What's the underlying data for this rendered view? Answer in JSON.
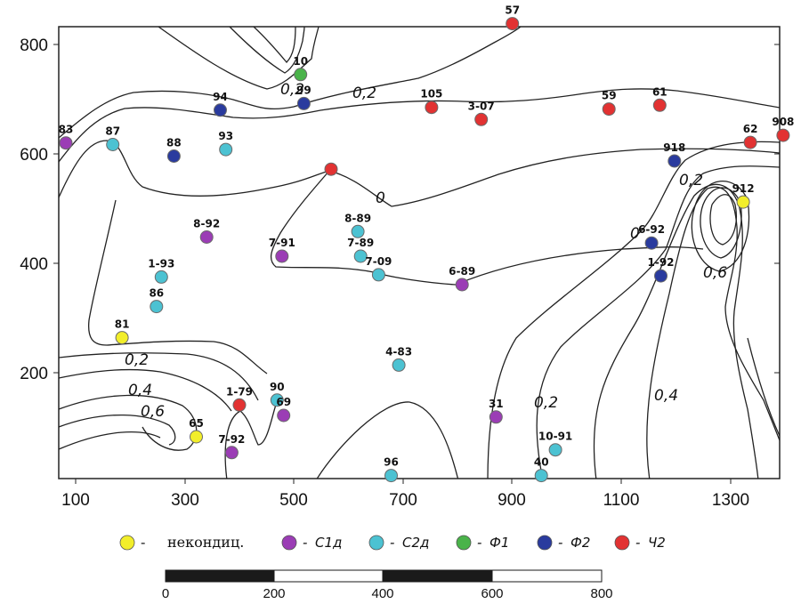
{
  "axes": {
    "x_ticks": [
      "100",
      "300",
      "500",
      "700",
      "900",
      "1100",
      "1300"
    ],
    "y_ticks": [
      "800",
      "600",
      "400",
      "200"
    ]
  },
  "colors": {
    "yellow": "#f2ee2a",
    "purple": "#9b3db5",
    "cyan": "#4cc2d2",
    "green": "#4ab34a",
    "blue": "#2a3b9e",
    "red": "#e23232"
  },
  "legend": [
    {
      "color_key": "yellow",
      "dash": "-",
      "label": "некондиц."
    },
    {
      "color_key": "purple",
      "dash": "-",
      "label": "С1д"
    },
    {
      "color_key": "cyan",
      "dash": "-",
      "label": "С2д"
    },
    {
      "color_key": "green",
      "dash": "-",
      "label": "Ф1"
    },
    {
      "color_key": "blue",
      "dash": "-",
      "label": "Ф2"
    },
    {
      "color_key": "red",
      "dash": "-",
      "label": "Ч2"
    }
  ],
  "scale_bar": {
    "labels": [
      "0",
      "200",
      "400",
      "600",
      "800"
    ]
  },
  "contour_labels": [
    "0,2",
    "0,2",
    "0",
    "0,2",
    "0,6",
    "0,4",
    "0,2",
    "0,4",
    "0,6",
    "0",
    "0,2"
  ],
  "wells": [
    {
      "label": "57",
      "x": 900,
      "y": 838,
      "color": "red"
    },
    {
      "label": "10",
      "x": 512,
      "y": 745,
      "color": "green"
    },
    {
      "label": "94",
      "x": 365,
      "y": 680,
      "color": "blue"
    },
    {
      "label": "99",
      "x": 518,
      "y": 692,
      "color": "blue"
    },
    {
      "label": "105",
      "x": 752,
      "y": 685,
      "color": "red"
    },
    {
      "label": "3-07",
      "x": 843,
      "y": 663,
      "color": "red"
    },
    {
      "label": "59",
      "x": 1077,
      "y": 682,
      "color": "red"
    },
    {
      "label": "61",
      "x": 1170,
      "y": 689,
      "color": "red"
    },
    {
      "label": "83",
      "x": 82,
      "y": 620,
      "color": "purple"
    },
    {
      "label": "87",
      "x": 168,
      "y": 617,
      "color": "cyan"
    },
    {
      "label": "88",
      "x": 280,
      "y": 596,
      "color": "blue"
    },
    {
      "label": "93",
      "x": 375,
      "y": 608,
      "color": "cyan"
    },
    {
      "label": "62",
      "x": 1336,
      "y": 621,
      "color": "red"
    },
    {
      "label": "908",
      "x": 1396,
      "y": 634,
      "color": "red"
    },
    {
      "label": "918",
      "x": 1197,
      "y": 587,
      "color": "blue"
    },
    {
      "label": "",
      "x": 568,
      "y": 572,
      "color": "red"
    },
    {
      "label": "912",
      "x": 1323,
      "y": 512,
      "color": "yellow"
    },
    {
      "label": "8-92",
      "x": 340,
      "y": 448,
      "color": "purple"
    },
    {
      "label": "8-89",
      "x": 617,
      "y": 458,
      "color": "cyan"
    },
    {
      "label": "6-92",
      "x": 1155,
      "y": 437,
      "color": "blue"
    },
    {
      "label": "7-91",
      "x": 478,
      "y": 413,
      "color": "purple"
    },
    {
      "label": "7-89",
      "x": 622,
      "y": 413,
      "color": "cyan"
    },
    {
      "label": "1-93",
      "x": 257,
      "y": 375,
      "color": "cyan"
    },
    {
      "label": "7-09",
      "x": 655,
      "y": 379,
      "color": "cyan"
    },
    {
      "label": "6-89",
      "x": 808,
      "y": 361,
      "color": "purple"
    },
    {
      "label": "1-92",
      "x": 1172,
      "y": 377,
      "color": "blue"
    },
    {
      "label": "86",
      "x": 248,
      "y": 321,
      "color": "cyan"
    },
    {
      "label": "81",
      "x": 185,
      "y": 264,
      "color": "yellow"
    },
    {
      "label": "4-83",
      "x": 692,
      "y": 214,
      "color": "cyan"
    },
    {
      "label": "1-79",
      "x": 400,
      "y": 141,
      "color": "red"
    },
    {
      "label": "90",
      "x": 469,
      "y": 150,
      "color": "cyan"
    },
    {
      "label": "69",
      "x": 481,
      "y": 122,
      "color": "purple"
    },
    {
      "label": "31",
      "x": 870,
      "y": 119,
      "color": "purple"
    },
    {
      "label": "65",
      "x": 321,
      "y": 83,
      "color": "yellow"
    },
    {
      "label": "7-92",
      "x": 386,
      "y": 54,
      "color": "purple"
    },
    {
      "label": "10-91",
      "x": 979,
      "y": 59,
      "color": "cyan"
    },
    {
      "label": "96",
      "x": 678,
      "y": 12,
      "color": "cyan"
    },
    {
      "label": "40",
      "x": 953,
      "y": 12,
      "color": "cyan"
    }
  ]
}
